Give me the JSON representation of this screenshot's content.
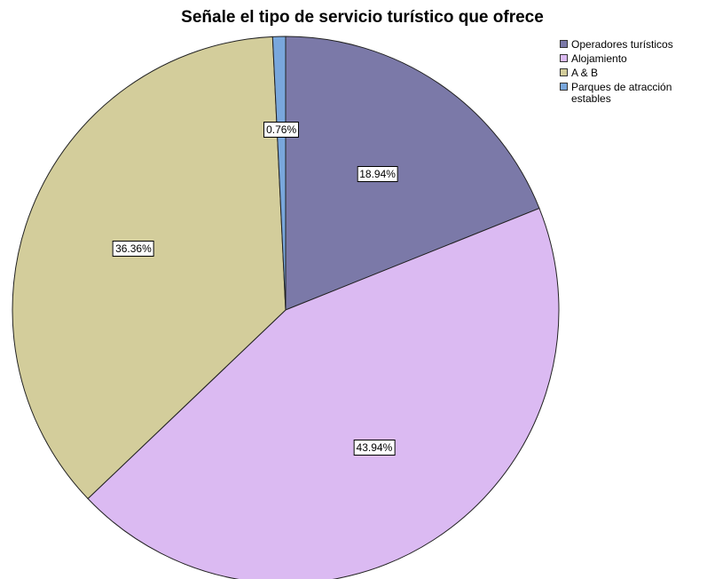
{
  "chart_data": {
    "type": "pie",
    "title": "Señale el tipo de servicio turístico que ofrece",
    "slices": [
      {
        "name": "Operadores turísticos",
        "value": 18.94,
        "label": "18.94%",
        "color": "#7b79a8"
      },
      {
        "name": "Alojamiento",
        "value": 43.94,
        "label": "43.94%",
        "color": "#dbbaf2"
      },
      {
        "name": "A & B",
        "value": 36.36,
        "label": "36.36%",
        "color": "#d3cd9b"
      },
      {
        "name": "Parques de atracción estables",
        "value": 0.76,
        "label": "0.76%",
        "color": "#79a7dc"
      }
    ],
    "legend_position": "top-right",
    "start_angle_deg": 0,
    "direction": "clockwise"
  }
}
